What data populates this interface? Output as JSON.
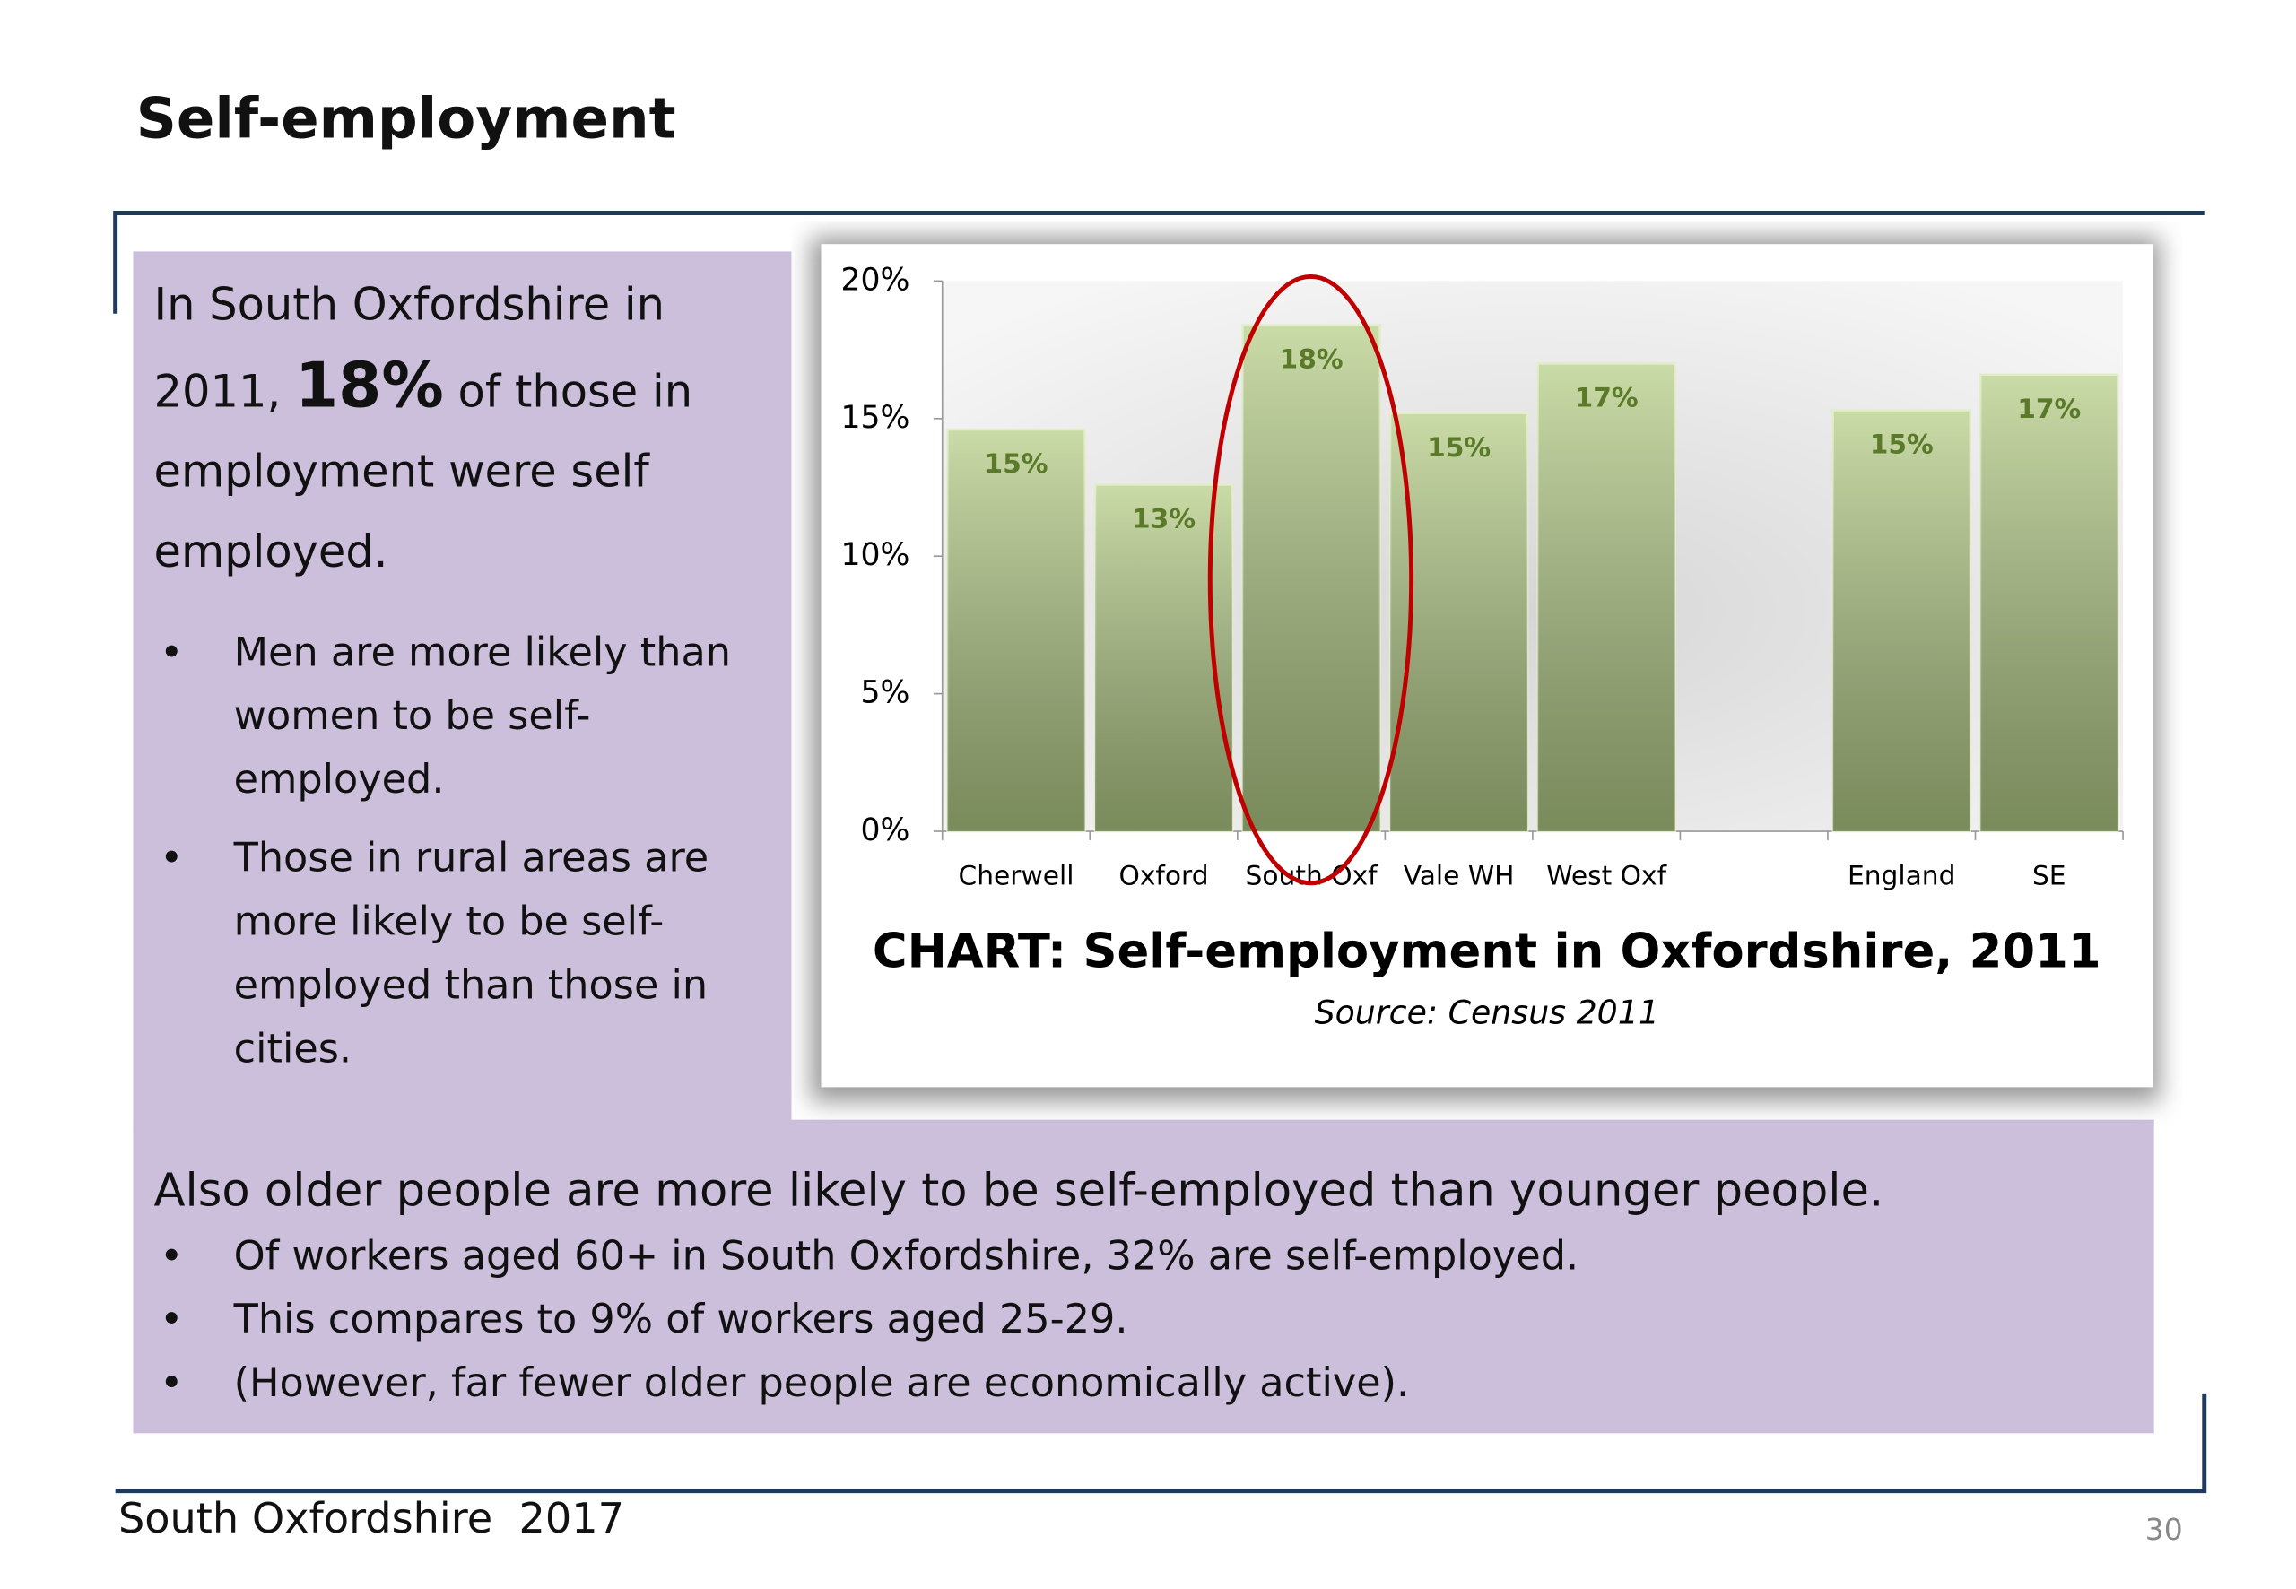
{
  "slide": {
    "title": "Self-employment",
    "intro": [
      "In South Oxfordshire in 2011,",
      "18%",
      "of those in employment were self employed."
    ],
    "bullets": [
      "Men are more likely than women to be self-employed.",
      "Those in rural areas are more likely to be self-employed than those in cities."
    ],
    "lower_heading": "Also older people are more likely to be self-employed than younger people.",
    "lower_bullets": [
      "Of workers aged 60+ in South Oxfordshire, 32% are self-employed.",
      "This compares to 9% of workers aged 25-29.",
      "(However, far fewer older people are economically active)."
    ],
    "footer": "South Oxfordshire  2017",
    "page_number": "30"
  },
  "chart_data": {
    "type": "bar",
    "title": "CHART: Self-employment in Oxfordshire, 2011",
    "subtitle": "Source: Census 2011",
    "categories": [
      "Cherwell",
      "Oxford",
      "South Oxf",
      "Vale WH",
      "West Oxf",
      null,
      "England",
      "SE"
    ],
    "values": [
      14.6,
      12.6,
      18.4,
      15.2,
      17.0,
      null,
      15.3,
      16.6
    ],
    "value_labels": [
      "15%",
      "13%",
      "18%",
      "15%",
      "17%",
      null,
      "15%",
      "17%"
    ],
    "color": "#c9dba6",
    "label_color": "#5a7a2a",
    "ylim": [
      0,
      20
    ],
    "yticks": [
      {
        "value": 0,
        "label": "0%"
      },
      {
        "value": 5,
        "label": "5%"
      },
      {
        "value": 10,
        "label": "10%"
      },
      {
        "value": 15,
        "label": "15%"
      },
      {
        "value": 20,
        "label": "20%"
      }
    ]
  }
}
